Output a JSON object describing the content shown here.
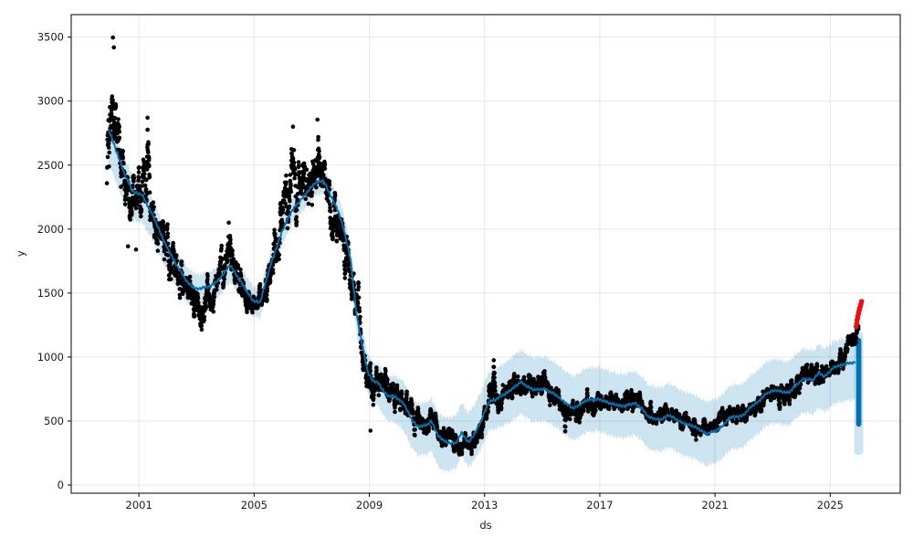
{
  "chart_data": {
    "type": "scatter",
    "title": "",
    "xlabel": "ds",
    "ylabel": "y",
    "xlim": [
      1998.65,
      2027.43
    ],
    "ylim": [
      -64,
      3676
    ],
    "xticks": [
      2001,
      2005,
      2009,
      2013,
      2017,
      2021,
      2025
    ],
    "yticks": [
      0,
      500,
      1000,
      1500,
      2000,
      2500,
      3000,
      3500
    ],
    "grid": true,
    "legend": "none",
    "colors": {
      "actuals": "#000000",
      "forecast_line": "#0072B2",
      "uncertainty_band": "#0072B2",
      "uncertainty_band_opacity": 0.2,
      "future_points": "#f20d0d",
      "gridline": "#e7e7e7",
      "spine": "#000000",
      "tick_label": "#1a1a1a"
    },
    "series": {
      "actuals": {
        "label": "observed y (black points)",
        "marker": "point",
        "trend": [
          [
            1999.89,
            2500,
            650
          ],
          [
            2000.05,
            2950,
            470
          ],
          [
            2000.2,
            2880,
            400
          ],
          [
            2000.35,
            2600,
            300
          ],
          [
            2000.5,
            2350,
            250
          ],
          [
            2000.7,
            2250,
            220
          ],
          [
            2000.9,
            2230,
            250
          ],
          [
            2001.1,
            2350,
            260
          ],
          [
            2001.28,
            2420,
            500
          ],
          [
            2001.45,
            2150,
            300
          ],
          [
            2001.6,
            2000,
            220
          ],
          [
            2001.8,
            1950,
            200
          ],
          [
            2002.0,
            1820,
            240
          ],
          [
            2002.3,
            1700,
            200
          ],
          [
            2002.6,
            1620,
            200
          ],
          [
            2002.9,
            1500,
            210
          ],
          [
            2003.2,
            1360,
            250
          ],
          [
            2003.5,
            1500,
            200
          ],
          [
            2003.8,
            1620,
            200
          ],
          [
            2004.1,
            1800,
            240
          ],
          [
            2004.35,
            1760,
            200
          ],
          [
            2004.6,
            1560,
            200
          ],
          [
            2004.85,
            1420,
            150
          ],
          [
            2005.1,
            1400,
            140
          ],
          [
            2005.4,
            1520,
            180
          ],
          [
            2005.7,
            1800,
            260
          ],
          [
            2006.0,
            2100,
            300
          ],
          [
            2006.3,
            2350,
            450
          ],
          [
            2006.6,
            2250,
            300
          ],
          [
            2006.9,
            2320,
            340
          ],
          [
            2007.15,
            2500,
            350
          ],
          [
            2007.4,
            2420,
            260
          ],
          [
            2007.7,
            2150,
            260
          ],
          [
            2008.0,
            1950,
            260
          ],
          [
            2008.3,
            1680,
            260
          ],
          [
            2008.6,
            1280,
            300
          ],
          [
            2008.85,
            880,
            250
          ],
          [
            2009.05,
            700,
            270
          ],
          [
            2009.3,
            780,
            200
          ],
          [
            2009.6,
            720,
            180
          ],
          [
            2009.9,
            710,
            180
          ],
          [
            2010.15,
            690,
            160
          ],
          [
            2010.4,
            600,
            150
          ],
          [
            2010.7,
            490,
            110
          ],
          [
            2011.0,
            480,
            110
          ],
          [
            2011.2,
            500,
            110
          ],
          [
            2011.5,
            390,
            100
          ],
          [
            2011.8,
            360,
            100
          ],
          [
            2012.1,
            310,
            85
          ],
          [
            2012.4,
            315,
            85
          ],
          [
            2012.7,
            360,
            85
          ],
          [
            2012.95,
            450,
            100
          ],
          [
            2013.1,
            620,
            180
          ],
          [
            2013.3,
            770,
            220
          ],
          [
            2013.5,
            640,
            140
          ],
          [
            2013.75,
            700,
            140
          ],
          [
            2014.0,
            760,
            130
          ],
          [
            2014.25,
            790,
            120
          ],
          [
            2014.5,
            750,
            130
          ],
          [
            2014.8,
            770,
            130
          ],
          [
            2015.1,
            800,
            140
          ],
          [
            2015.35,
            740,
            170
          ],
          [
            2015.6,
            620,
            150
          ],
          [
            2015.9,
            530,
            120
          ],
          [
            2016.2,
            560,
            120
          ],
          [
            2016.5,
            620,
            110
          ],
          [
            2016.8,
            650,
            110
          ],
          [
            2017.1,
            655,
            115
          ],
          [
            2017.4,
            630,
            115
          ],
          [
            2017.7,
            615,
            105
          ],
          [
            2018.0,
            645,
            120
          ],
          [
            2018.3,
            650,
            110
          ],
          [
            2018.6,
            565,
            105
          ],
          [
            2018.9,
            545,
            105
          ],
          [
            2019.2,
            535,
            105
          ],
          [
            2019.5,
            550,
            95
          ],
          [
            2019.8,
            495,
            95
          ],
          [
            2020.1,
            470,
            100
          ],
          [
            2020.4,
            450,
            90
          ],
          [
            2020.7,
            430,
            90
          ],
          [
            2021.0,
            475,
            100
          ],
          [
            2021.3,
            520,
            100
          ],
          [
            2021.6,
            540,
            95
          ],
          [
            2021.9,
            530,
            95
          ],
          [
            2022.2,
            580,
            100
          ],
          [
            2022.5,
            625,
            105
          ],
          [
            2022.8,
            685,
            110
          ],
          [
            2023.1,
            720,
            110
          ],
          [
            2023.4,
            705,
            110
          ],
          [
            2023.7,
            765,
            120
          ],
          [
            2024.0,
            820,
            130
          ],
          [
            2024.3,
            835,
            120
          ],
          [
            2024.6,
            870,
            120
          ],
          [
            2024.85,
            845,
            110
          ],
          [
            2025.1,
            935,
            120
          ],
          [
            2025.35,
            1005,
            115
          ],
          [
            2025.6,
            1085,
            105
          ],
          [
            2025.8,
            1155,
            90
          ],
          [
            2025.97,
            1225,
            70
          ]
        ],
        "extra_points": [
          [
            2000.1,
            3497
          ],
          [
            2000.13,
            3420
          ],
          [
            2001.3,
            2870
          ],
          [
            2004.12,
            2050
          ],
          [
            2009.04,
            425
          ],
          [
            2013.32,
            975
          ],
          [
            2000.62,
            1865
          ],
          [
            2000.9,
            1840
          ],
          [
            2006.35,
            2800
          ],
          [
            2007.2,
            2855
          ]
        ],
        "x_start": 1999.89,
        "x_end": 2025.98
      },
      "forecast": {
        "label": "yhat",
        "points": [
          [
            1999.95,
            2780
          ],
          [
            2000.2,
            2620
          ],
          [
            2000.5,
            2430
          ],
          [
            2000.8,
            2290
          ],
          [
            2001.1,
            2270
          ],
          [
            2001.5,
            2100
          ],
          [
            2001.9,
            1890
          ],
          [
            2002.3,
            1720
          ],
          [
            2002.7,
            1580
          ],
          [
            2003.0,
            1530
          ],
          [
            2003.5,
            1555
          ],
          [
            2003.8,
            1610
          ],
          [
            2004.17,
            1720
          ],
          [
            2004.5,
            1600
          ],
          [
            2004.96,
            1440
          ],
          [
            2005.2,
            1425
          ],
          [
            2005.6,
            1740
          ],
          [
            2006.0,
            2000
          ],
          [
            2006.33,
            2150
          ],
          [
            2006.74,
            2260
          ],
          [
            2007.1,
            2360
          ],
          [
            2007.4,
            2380
          ],
          [
            2007.9,
            2150
          ],
          [
            2008.1,
            2010
          ],
          [
            2008.35,
            1760
          ],
          [
            2008.55,
            1340
          ],
          [
            2008.75,
            1100
          ],
          [
            2008.95,
            880
          ],
          [
            2009.1,
            820
          ],
          [
            2009.3,
            800
          ],
          [
            2009.6,
            700
          ],
          [
            2009.9,
            690
          ],
          [
            2010.2,
            635
          ],
          [
            2010.45,
            520
          ],
          [
            2010.67,
            455
          ],
          [
            2011.0,
            470
          ],
          [
            2011.15,
            500
          ],
          [
            2011.4,
            380
          ],
          [
            2011.7,
            330
          ],
          [
            2012.0,
            325
          ],
          [
            2012.2,
            410
          ],
          [
            2012.45,
            330
          ],
          [
            2012.7,
            420
          ],
          [
            2012.9,
            510
          ],
          [
            2013.14,
            650
          ],
          [
            2013.4,
            670
          ],
          [
            2013.84,
            730
          ],
          [
            2014.25,
            805
          ],
          [
            2014.67,
            745
          ],
          [
            2015.11,
            750
          ],
          [
            2015.5,
            700
          ],
          [
            2015.8,
            640
          ],
          [
            2016.1,
            600
          ],
          [
            2016.57,
            665
          ],
          [
            2017.0,
            670
          ],
          [
            2017.4,
            635
          ],
          [
            2017.8,
            615
          ],
          [
            2018.2,
            640
          ],
          [
            2018.45,
            600
          ],
          [
            2018.7,
            530
          ],
          [
            2019.1,
            510
          ],
          [
            2019.4,
            545
          ],
          [
            2019.87,
            485
          ],
          [
            2020.28,
            457
          ],
          [
            2020.7,
            400
          ],
          [
            2021.14,
            435
          ],
          [
            2021.55,
            530
          ],
          [
            2021.96,
            540
          ],
          [
            2022.27,
            615
          ],
          [
            2022.5,
            650
          ],
          [
            2022.8,
            720
          ],
          [
            2023.1,
            740
          ],
          [
            2023.54,
            720
          ],
          [
            2023.86,
            790
          ],
          [
            2024.08,
            830
          ],
          [
            2024.4,
            820
          ],
          [
            2024.62,
            880
          ],
          [
            2024.8,
            845
          ],
          [
            2025.13,
            920
          ],
          [
            2025.35,
            935
          ],
          [
            2025.6,
            950
          ],
          [
            2025.88,
            960
          ]
        ]
      },
      "uncertainty": {
        "label": "yhat_lower / yhat_upper (offsets from yhat)",
        "offsets": [
          [
            2000.0,
            -260,
            120
          ],
          [
            2002.0,
            -180,
            120
          ],
          [
            2004.0,
            -130,
            110
          ],
          [
            2005.0,
            -120,
            115
          ],
          [
            2006.5,
            -110,
            100
          ],
          [
            2007.5,
            -100,
            100
          ],
          [
            2008.5,
            -140,
            130
          ],
          [
            2009.5,
            -190,
            150
          ],
          [
            2010.5,
            -220,
            180
          ],
          [
            2011.5,
            -240,
            180
          ],
          [
            2012.2,
            -180,
            230
          ],
          [
            2013.0,
            -220,
            230
          ],
          [
            2014.0,
            -250,
            250
          ],
          [
            2016.0,
            -250,
            250
          ],
          [
            2018.0,
            -250,
            250
          ],
          [
            2020.0,
            -250,
            250
          ],
          [
            2022.0,
            -250,
            250
          ],
          [
            2024.0,
            -260,
            240
          ],
          [
            2025.4,
            -290,
            200
          ],
          [
            2025.88,
            -290,
            200
          ]
        ]
      },
      "forecast_tail": {
        "label": "future forecast oscillation (vertical bar)",
        "x_start": 2025.88,
        "x_end": 2026.1,
        "line_min": 455,
        "line_max": 1150,
        "band_min": 235,
        "band_max": 1195
      },
      "future": {
        "label": "future/highlighted points (red)",
        "points": [
          [
            2025.9,
            1238
          ],
          [
            2025.92,
            1262
          ],
          [
            2025.93,
            1288
          ],
          [
            2025.95,
            1302
          ],
          [
            2025.96,
            1320
          ],
          [
            2025.98,
            1338
          ],
          [
            2025.99,
            1352
          ],
          [
            2026.01,
            1368
          ],
          [
            2026.03,
            1385
          ],
          [
            2026.05,
            1400
          ],
          [
            2026.07,
            1418
          ],
          [
            2026.09,
            1435
          ]
        ]
      }
    }
  }
}
